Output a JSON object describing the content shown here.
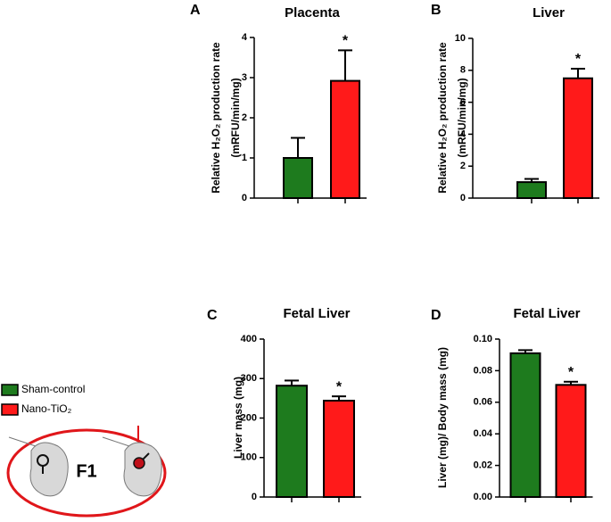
{
  "legend": [
    {
      "name": "Sham-control",
      "color": "#1e7b1e"
    },
    {
      "name": "Nano-TiO₂",
      "color": "#ff1a1a"
    }
  ],
  "diagram": {
    "label": "F1"
  },
  "chart_data": [
    {
      "type": "bar",
      "panel": "A",
      "title": "Placenta",
      "ylabel": [
        "Relative H₂O₂ production rate",
        "(mRFU/min/mg)"
      ],
      "categories": [
        null,
        null
      ],
      "values": [
        1.0,
        2.92
      ],
      "errors": [
        0.5,
        0.76
      ],
      "annotation": "*",
      "ylim": [
        0,
        4
      ],
      "yticks": [
        0,
        1,
        2,
        3,
        4
      ]
    },
    {
      "type": "bar",
      "panel": "B",
      "title": "Liver",
      "ylabel": [
        "Relative H₂O₂ production rate",
        "(mRFU/min/mg)"
      ],
      "categories": [
        null,
        null
      ],
      "values": [
        1.0,
        7.5
      ],
      "errors": [
        0.2,
        0.6
      ],
      "annotation": "*",
      "ylim": [
        0,
        10
      ],
      "yticks": [
        0,
        2,
        4,
        6,
        8,
        10
      ]
    },
    {
      "type": "bar",
      "panel": "C",
      "title": "Fetal Liver",
      "ylabel": [
        "Liver mass (mg)"
      ],
      "categories": [
        null,
        null
      ],
      "values": [
        282,
        244
      ],
      "errors": [
        13,
        11
      ],
      "annotation": "*",
      "ylim": [
        0,
        400
      ],
      "yticks": [
        0,
        100,
        200,
        300,
        400
      ]
    },
    {
      "type": "bar",
      "panel": "D",
      "title": "Fetal Liver",
      "ylabel": [
        "Liver (mg)/ Body mass (mg)"
      ],
      "categories": [
        null,
        null
      ],
      "values": [
        0.091,
        0.071
      ],
      "errors": [
        0.002,
        0.002
      ],
      "annotation": "*",
      "ylim": [
        0,
        0.1
      ],
      "yticks": [
        {
          "value": 0,
          "label": "0.00"
        },
        {
          "value": 0.02,
          "label": "0.02"
        },
        {
          "value": 0.04,
          "label": "0.04"
        },
        {
          "value": 0.06,
          "label": "0.06"
        },
        {
          "value": 0.08,
          "label": "0.08"
        },
        {
          "value": 0.1,
          "label": "0.10"
        }
      ]
    }
  ]
}
